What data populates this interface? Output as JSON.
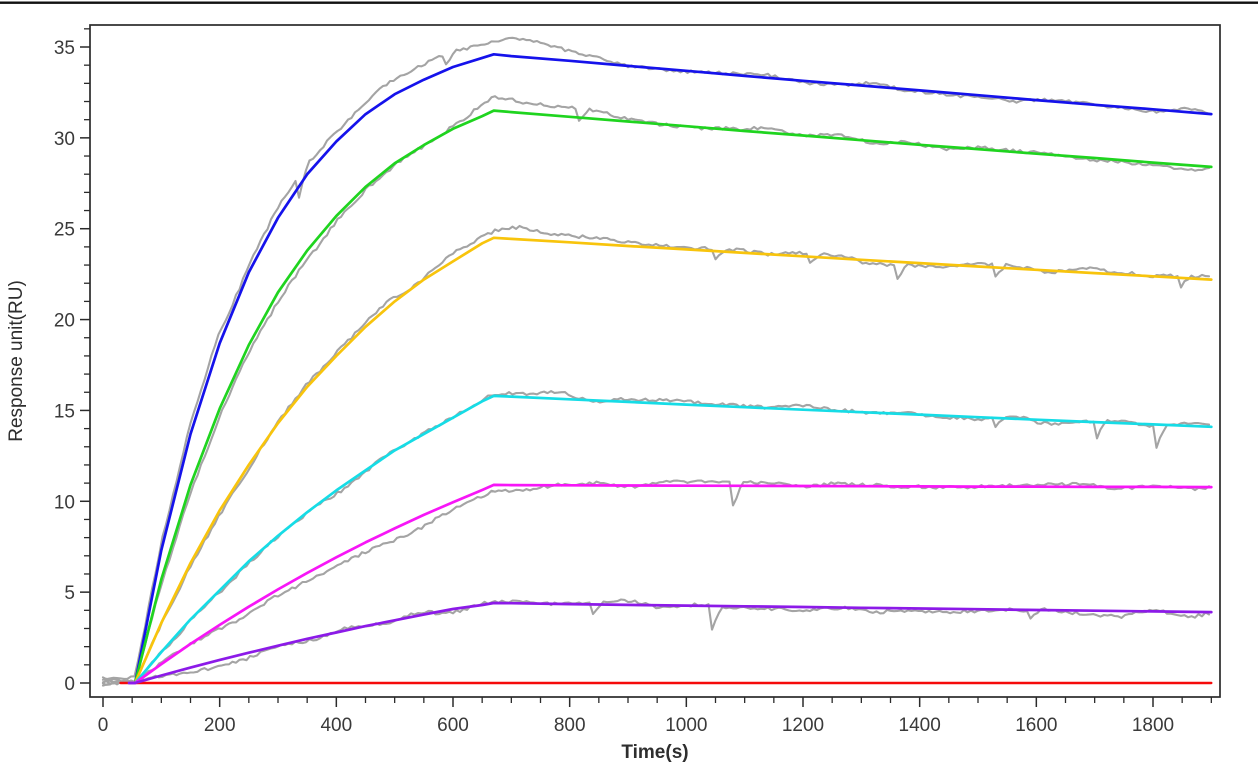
{
  "page": {
    "background_color": "#ffffff",
    "top_rule_color": "#111111"
  },
  "chart_data": {
    "type": "line",
    "title": "",
    "xlabel": "Time(s)",
    "ylabel": "Response unit(RU)",
    "xlim": [
      -25,
      1915
    ],
    "ylim": [
      -0.77,
      36.2
    ],
    "x_ticks": [
      0,
      200,
      400,
      600,
      800,
      1000,
      1200,
      1400,
      1600,
      1800
    ],
    "x_minor_step": 50,
    "x_minor_max": 1900,
    "y_ticks": [
      0,
      5,
      10,
      15,
      20,
      25,
      30,
      35
    ],
    "y_minor_step": 1,
    "y_minor_max": 36,
    "grid": false,
    "legend_position": "none",
    "axis_color": "#2b2b2b",
    "tick_label_color": "#3a3a3a",
    "raw_trace_color": "#a4a4a4",
    "noise": {
      "slow_ru": 0.2,
      "fast_ru": 0.09,
      "dip_chance": 0.011,
      "dip_min_ru": 0.5,
      "dip_extra_ru": 0.8
    },
    "association_start_s": 55,
    "dissociation_start_s": 670,
    "series": [
      {
        "name": "fit-curve-blue",
        "color": "#1512eb",
        "noise_scale": 1,
        "has_raw_trace": true,
        "points": [
          [
            45,
            0
          ],
          [
            55,
            0
          ],
          [
            100,
            7.3
          ],
          [
            150,
            13.7
          ],
          [
            200,
            18.7
          ],
          [
            250,
            22.6
          ],
          [
            300,
            25.6
          ],
          [
            350,
            28.0
          ],
          [
            400,
            29.8
          ],
          [
            450,
            31.3
          ],
          [
            500,
            32.4
          ],
          [
            550,
            33.2
          ],
          [
            600,
            33.9
          ],
          [
            650,
            34.4
          ],
          [
            670,
            34.6
          ],
          [
            700,
            34.5
          ],
          [
            800,
            34.24
          ],
          [
            900,
            33.96
          ],
          [
            1000,
            33.69
          ],
          [
            1100,
            33.41
          ],
          [
            1200,
            33.14
          ],
          [
            1300,
            32.88
          ],
          [
            1400,
            32.61
          ],
          [
            1500,
            32.35
          ],
          [
            1600,
            32.08
          ],
          [
            1700,
            31.82
          ],
          [
            1800,
            31.57
          ],
          [
            1900,
            31.31
          ]
        ],
        "raw_bias": [
          [
            0,
            0.15
          ],
          [
            55,
            0.2
          ],
          [
            150,
            0.5
          ],
          [
            300,
            0.6
          ],
          [
            450,
            0.7
          ],
          [
            550,
            0.8
          ],
          [
            620,
            0.8
          ],
          [
            690,
            0.9
          ],
          [
            760,
            0.75
          ],
          [
            830,
            0.4
          ],
          [
            900,
            0.15
          ],
          [
            1000,
            0.05
          ],
          [
            1200,
            0
          ],
          [
            1400,
            0.05
          ],
          [
            1600,
            -0.05
          ],
          [
            1750,
            -0.15
          ],
          [
            1900,
            0
          ]
        ]
      },
      {
        "name": "fit-curve-green",
        "color": "#1fd41f",
        "noise_scale": 1,
        "has_raw_trace": true,
        "points": [
          [
            45,
            0
          ],
          [
            55,
            0
          ],
          [
            100,
            5.7
          ],
          [
            150,
            10.9
          ],
          [
            200,
            15.1
          ],
          [
            250,
            18.6
          ],
          [
            300,
            21.5
          ],
          [
            350,
            23.8
          ],
          [
            400,
            25.7
          ],
          [
            450,
            27.3
          ],
          [
            500,
            28.6
          ],
          [
            550,
            29.6
          ],
          [
            600,
            30.5
          ],
          [
            650,
            31.2
          ],
          [
            670,
            31.5
          ],
          [
            700,
            31.42
          ],
          [
            800,
            31.16
          ],
          [
            900,
            30.9
          ],
          [
            1000,
            30.64
          ],
          [
            1100,
            30.38
          ],
          [
            1200,
            30.13
          ],
          [
            1300,
            29.87
          ],
          [
            1400,
            29.62
          ],
          [
            1500,
            29.38
          ],
          [
            1600,
            29.13
          ],
          [
            1700,
            28.89
          ],
          [
            1800,
            28.64
          ],
          [
            1900,
            28.4
          ]
        ],
        "raw_bias": [
          [
            0,
            0.1
          ],
          [
            55,
            0
          ],
          [
            150,
            -0.3
          ],
          [
            250,
            -0.5
          ],
          [
            400,
            -0.4
          ],
          [
            550,
            -0.1
          ],
          [
            640,
            0.4
          ],
          [
            700,
            0.7
          ],
          [
            780,
            0.5
          ],
          [
            860,
            0.3
          ],
          [
            950,
            0.15
          ],
          [
            1100,
            0.05
          ],
          [
            1400,
            0
          ],
          [
            1700,
            -0.1
          ],
          [
            1900,
            -0.05
          ]
        ]
      },
      {
        "name": "fit-curve-gold",
        "color": "#f8c40c",
        "noise_scale": 1,
        "has_raw_trace": true,
        "points": [
          [
            45,
            0
          ],
          [
            55,
            0
          ],
          [
            100,
            3.3
          ],
          [
            150,
            6.6
          ],
          [
            200,
            9.5
          ],
          [
            250,
            12.0
          ],
          [
            300,
            14.3
          ],
          [
            350,
            16.3
          ],
          [
            400,
            18.0
          ],
          [
            450,
            19.6
          ],
          [
            500,
            21.0
          ],
          [
            550,
            22.2
          ],
          [
            600,
            23.2
          ],
          [
            650,
            24.2
          ],
          [
            670,
            24.5
          ],
          [
            700,
            24.44
          ],
          [
            800,
            24.25
          ],
          [
            900,
            24.05
          ],
          [
            1000,
            23.86
          ],
          [
            1100,
            23.67
          ],
          [
            1200,
            23.48
          ],
          [
            1300,
            23.29
          ],
          [
            1400,
            23.11
          ],
          [
            1500,
            22.92
          ],
          [
            1600,
            22.74
          ],
          [
            1700,
            22.56
          ],
          [
            1800,
            22.38
          ],
          [
            1900,
            22.2
          ]
        ],
        "raw_bias": [
          [
            0,
            0.1
          ],
          [
            55,
            0
          ],
          [
            200,
            -0.2
          ],
          [
            350,
            0.1
          ],
          [
            500,
            0.15
          ],
          [
            620,
            0.3
          ],
          [
            700,
            0.5
          ],
          [
            780,
            0.3
          ],
          [
            860,
            0.15
          ],
          [
            1000,
            0.05
          ],
          [
            1300,
            0
          ],
          [
            1600,
            0.05
          ],
          [
            1900,
            0
          ]
        ]
      },
      {
        "name": "fit-curve-cyan",
        "color": "#16dce6",
        "noise_scale": 1,
        "has_raw_trace": true,
        "points": [
          [
            45,
            0
          ],
          [
            55,
            0
          ],
          [
            100,
            1.7
          ],
          [
            150,
            3.5
          ],
          [
            200,
            5.1
          ],
          [
            250,
            6.7
          ],
          [
            300,
            8.1
          ],
          [
            350,
            9.4
          ],
          [
            400,
            10.6
          ],
          [
            450,
            11.7
          ],
          [
            500,
            12.8
          ],
          [
            550,
            13.7
          ],
          [
            600,
            14.6
          ],
          [
            650,
            15.5
          ],
          [
            670,
            15.8
          ],
          [
            700,
            15.76
          ],
          [
            800,
            15.61
          ],
          [
            900,
            15.47
          ],
          [
            1000,
            15.32
          ],
          [
            1100,
            15.18
          ],
          [
            1200,
            15.04
          ],
          [
            1300,
            14.9
          ],
          [
            1400,
            14.77
          ],
          [
            1500,
            14.63
          ],
          [
            1600,
            14.49
          ],
          [
            1700,
            14.36
          ],
          [
            1800,
            14.23
          ],
          [
            1900,
            14.1
          ]
        ],
        "raw_bias": [
          [
            0,
            0.1
          ],
          [
            55,
            0
          ],
          [
            200,
            -0.25
          ],
          [
            350,
            -0.2
          ],
          [
            500,
            -0.1
          ],
          [
            650,
            0.1
          ],
          [
            720,
            0.2
          ],
          [
            850,
            0.15
          ],
          [
            1000,
            0.1
          ],
          [
            1300,
            0.05
          ],
          [
            1600,
            -0.05
          ],
          [
            1900,
            0
          ]
        ]
      },
      {
        "name": "fit-curve-magenta",
        "color": "#f716f7",
        "noise_scale": 1,
        "has_raw_trace": true,
        "points": [
          [
            45,
            0
          ],
          [
            55,
            0
          ],
          [
            100,
            1.04
          ],
          [
            150,
            2.15
          ],
          [
            200,
            3.2
          ],
          [
            250,
            4.2
          ],
          [
            300,
            5.15
          ],
          [
            350,
            6.06
          ],
          [
            400,
            6.92
          ],
          [
            450,
            7.74
          ],
          [
            500,
            8.51
          ],
          [
            550,
            9.25
          ],
          [
            600,
            9.95
          ],
          [
            650,
            10.62
          ],
          [
            670,
            10.9
          ],
          [
            700,
            10.89
          ],
          [
            800,
            10.88
          ],
          [
            900,
            10.87
          ],
          [
            1000,
            10.86
          ],
          [
            1100,
            10.85
          ],
          [
            1200,
            10.84
          ],
          [
            1300,
            10.83
          ],
          [
            1400,
            10.82
          ],
          [
            1500,
            10.81
          ],
          [
            1600,
            10.8
          ],
          [
            1700,
            10.79
          ],
          [
            1800,
            10.79
          ],
          [
            1900,
            10.78
          ]
        ],
        "raw_bias": [
          [
            0,
            0.1
          ],
          [
            55,
            0
          ],
          [
            200,
            -0.35
          ],
          [
            350,
            -0.55
          ],
          [
            500,
            -0.65
          ],
          [
            600,
            -0.5
          ],
          [
            680,
            -0.3
          ],
          [
            780,
            -0.1
          ],
          [
            880,
            0.05
          ],
          [
            1000,
            0.1
          ],
          [
            1200,
            0.08
          ],
          [
            1500,
            0.05
          ],
          [
            1900,
            0.05
          ]
        ]
      },
      {
        "name": "fit-curve-violet",
        "color": "#8c1ae8",
        "noise_scale": 1,
        "has_raw_trace": true,
        "points": [
          [
            45,
            0
          ],
          [
            55,
            0
          ],
          [
            100,
            0.41
          ],
          [
            150,
            0.85
          ],
          [
            200,
            1.27
          ],
          [
            250,
            1.67
          ],
          [
            300,
            2.05
          ],
          [
            350,
            2.43
          ],
          [
            400,
            2.78
          ],
          [
            450,
            3.13
          ],
          [
            500,
            3.45
          ],
          [
            550,
            3.77
          ],
          [
            600,
            4.07
          ],
          [
            650,
            4.29
          ],
          [
            670,
            4.4
          ],
          [
            700,
            4.39
          ],
          [
            800,
            4.34
          ],
          [
            900,
            4.3
          ],
          [
            1000,
            4.26
          ],
          [
            1100,
            4.22
          ],
          [
            1200,
            4.18
          ],
          [
            1300,
            4.14
          ],
          [
            1400,
            4.1
          ],
          [
            1500,
            4.06
          ],
          [
            1600,
            4.02
          ],
          [
            1700,
            3.98
          ],
          [
            1800,
            3.94
          ],
          [
            1900,
            3.9
          ]
        ],
        "raw_bias": [
          [
            0,
            0.05
          ],
          [
            55,
            0
          ],
          [
            150,
            -0.3
          ],
          [
            250,
            -0.15
          ],
          [
            400,
            0.05
          ],
          [
            550,
            -0.05
          ],
          [
            700,
            0.1
          ],
          [
            900,
            0.05
          ],
          [
            1200,
            -0.05
          ],
          [
            1500,
            0
          ],
          [
            1700,
            -0.15
          ],
          [
            1900,
            -0.1
          ]
        ]
      },
      {
        "name": "baseline-red",
        "color": "#f50a0a",
        "noise_scale": 0,
        "has_raw_trace": false,
        "points": [
          [
            30,
            0
          ],
          [
            1900,
            0
          ]
        ],
        "raw_bias": []
      }
    ]
  }
}
